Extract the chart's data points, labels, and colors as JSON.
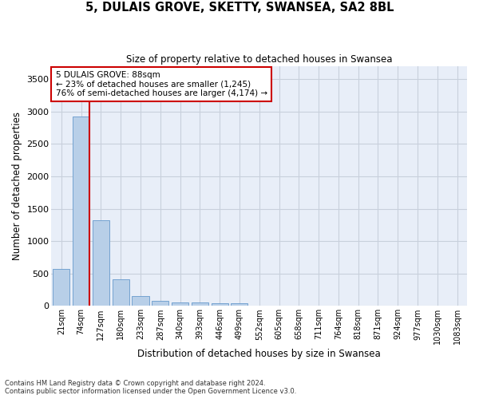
{
  "title": "5, DULAIS GROVE, SKETTY, SWANSEA, SA2 8BL",
  "subtitle": "Size of property relative to detached houses in Swansea",
  "xlabel": "Distribution of detached houses by size in Swansea",
  "ylabel": "Number of detached properties",
  "bar_color": "#b8cfe8",
  "bar_edge_color": "#6699cc",
  "grid_color": "#c8d0dc",
  "background_color": "#e8eef8",
  "annotation_box_color": "#cc0000",
  "property_line_color": "#cc0000",
  "annotation_title": "5 DULAIS GROVE: 88sqm",
  "annotation_line1": "← 23% of detached houses are smaller (1,245)",
  "annotation_line2": "76% of semi-detached houses are larger (4,174) →",
  "categories": [
    "21sqm",
    "74sqm",
    "127sqm",
    "180sqm",
    "233sqm",
    "287sqm",
    "340sqm",
    "393sqm",
    "446sqm",
    "499sqm",
    "552sqm",
    "605sqm",
    "658sqm",
    "711sqm",
    "764sqm",
    "818sqm",
    "871sqm",
    "924sqm",
    "977sqm",
    "1030sqm",
    "1083sqm"
  ],
  "values": [
    570,
    2920,
    1320,
    410,
    150,
    80,
    60,
    55,
    45,
    40,
    0,
    0,
    0,
    0,
    0,
    0,
    0,
    0,
    0,
    0,
    0
  ],
  "ylim": [
    0,
    3700
  ],
  "yticks": [
    0,
    500,
    1000,
    1500,
    2000,
    2500,
    3000,
    3500
  ],
  "property_bar_index": 1,
  "footer_line1": "Contains HM Land Registry data © Crown copyright and database right 2024.",
  "footer_line2": "Contains public sector information licensed under the Open Government Licence v3.0."
}
